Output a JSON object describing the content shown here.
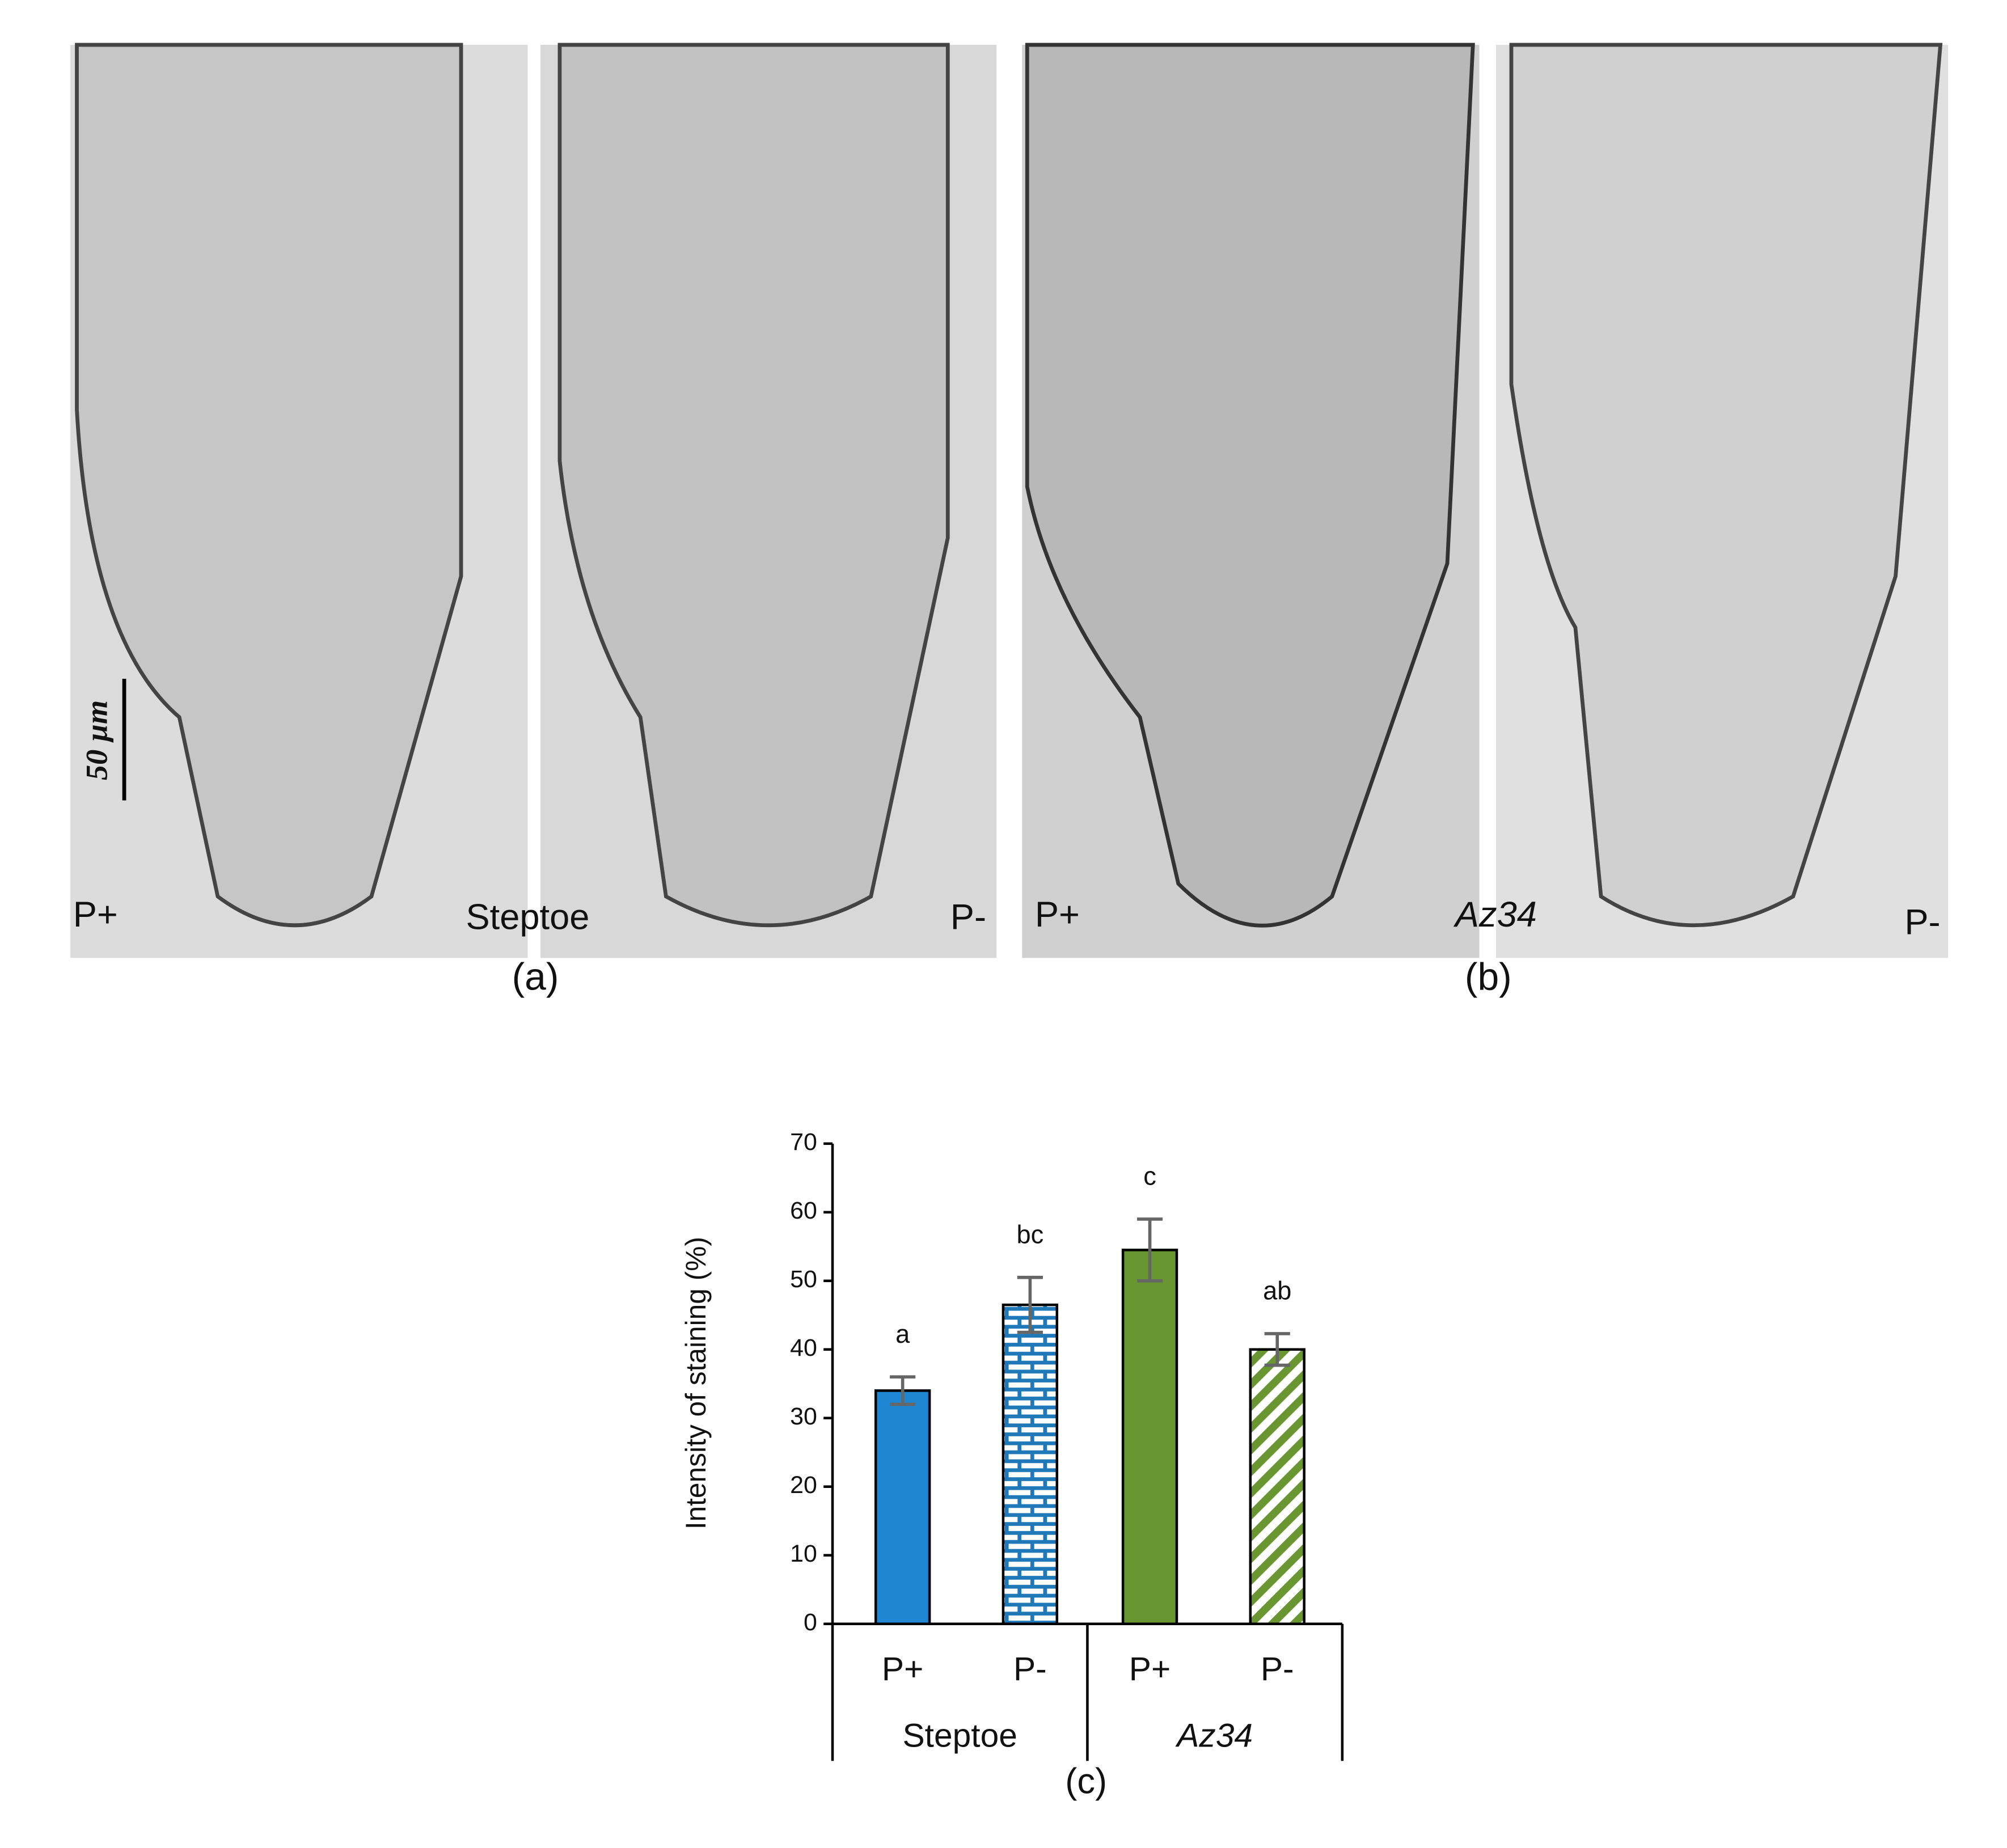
{
  "panels": {
    "labels": [
      "P+",
      "Steptoe",
      "P-",
      "P+",
      "Az34",
      "P-"
    ],
    "captions": [
      "(a)",
      "(b)"
    ],
    "scale_bar": "50 µm"
  },
  "chart_data": {
    "type": "bar",
    "ylabel": "Intensity of staining (%)",
    "caption": "(c)",
    "categories": [
      "P+",
      "P-",
      "P+",
      "P-"
    ],
    "groups": [
      "Steptoe",
      "Az34"
    ],
    "values": [
      34,
      46.5,
      54.5,
      40
    ],
    "errors": [
      2,
      4,
      4.5,
      2.3
    ],
    "annotations": [
      "a",
      "bc",
      "c",
      "ab"
    ],
    "colors": [
      "#1f86d4",
      "#1f78b8",
      "#6a9632",
      "#6a9632"
    ],
    "patterns": [
      "solid",
      "brick",
      "solid",
      "diagonal"
    ],
    "ylim": [
      0,
      70
    ],
    "yticks": [
      0,
      10,
      20,
      30,
      40,
      50,
      60,
      70
    ],
    "grid": false
  }
}
